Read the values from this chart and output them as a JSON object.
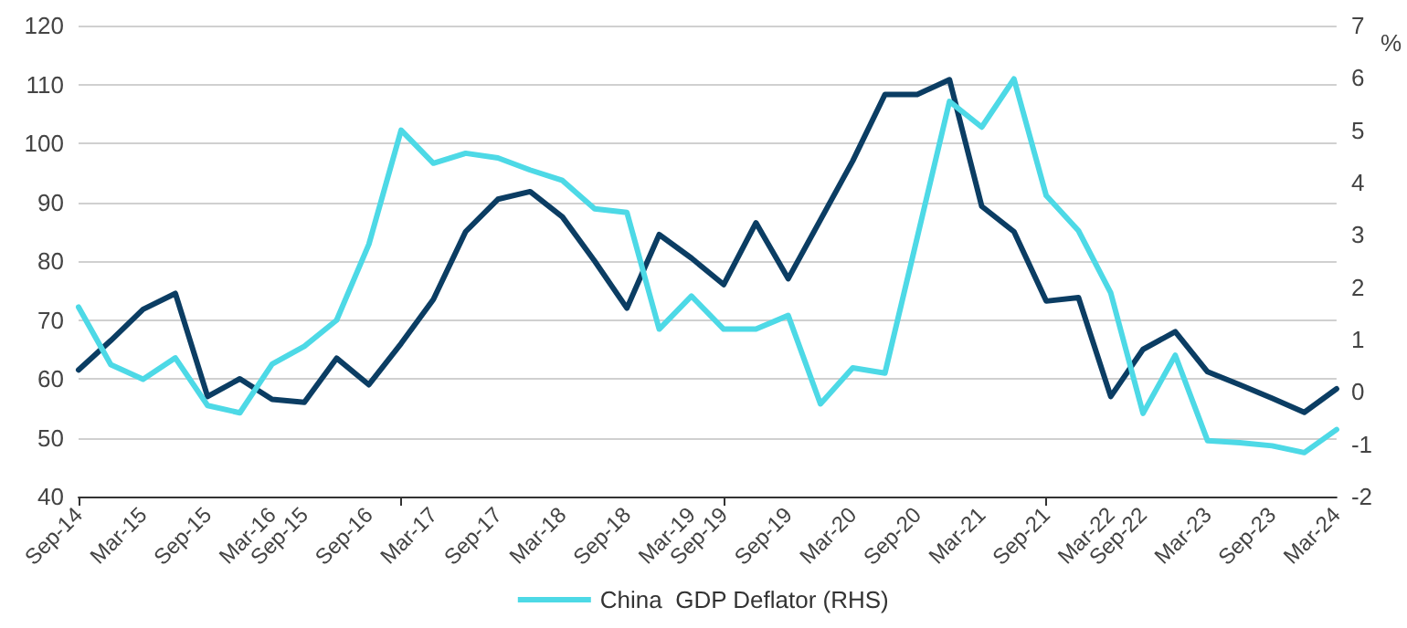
{
  "chart_data": {
    "type": "line",
    "categories": [
      "Sep-14",
      null,
      "Mar-15",
      null,
      "Sep-15",
      null,
      "Mar-16",
      "Sep-15",
      null,
      "Sep-16",
      null,
      "Mar-17",
      null,
      "Sep-17",
      null,
      "Mar-18",
      null,
      "Sep-18",
      null,
      "Mar-19",
      "Sep-19",
      null,
      "Sep-19",
      null,
      "Mar-20",
      null,
      "Sep-20",
      null,
      "Mar-21",
      null,
      "Sep-21",
      null,
      "Mar-22",
      "Sep-22",
      null,
      "Mar-23",
      null,
      "Sep-23",
      null,
      "Mar-24"
    ],
    "series": [
      {
        "color": "#0b3d63",
        "values": [
          61.5,
          66.5,
          71.8,
          74.5,
          57,
          60,
          56.5,
          56,
          63.5,
          59,
          66,
          73.5,
          85,
          90.5,
          91.8,
          87.5,
          80,
          72,
          84.5,
          80.5,
          76,
          86.5,
          77,
          87,
          97,
          108.3,
          108.3,
          110.8,
          89.3,
          85,
          73.2,
          73.8,
          57,
          65,
          68,
          61.2,
          59,
          56.7,
          54.3,
          58.3
        ]
      },
      {
        "name": "China  GDP Deflator (RHS)",
        "color": "#4dd9e6",
        "axis": "y2",
        "values": [
          1.62,
          0.52,
          0.24,
          0.65,
          -0.26,
          -0.4,
          0.53,
          0.87,
          1.37,
          2.82,
          5.0,
          4.37,
          4.56,
          4.47,
          4.24,
          4.04,
          3.5,
          3.43,
          1.2,
          1.83,
          1.2,
          1.2,
          1.46,
          -0.23,
          0.46,
          0.36,
          2.95,
          5.55,
          5.06,
          5.98,
          3.75,
          3.08,
          1.89,
          -0.41,
          0.7,
          -0.93,
          -0.97,
          -1.03,
          -1.16,
          -0.72
        ]
      }
    ],
    "ylim": [
      40,
      120
    ],
    "yticks": [
      40,
      50,
      60,
      70,
      80,
      90,
      100,
      110,
      120
    ],
    "y2lim": [
      -2,
      7
    ],
    "y2ticks": [
      -2,
      -1,
      0,
      1,
      2,
      3,
      4,
      5,
      6,
      7
    ],
    "y2label": "%",
    "grid": "y",
    "legend": "bottom",
    "marker": "none",
    "line_style": "solid"
  }
}
